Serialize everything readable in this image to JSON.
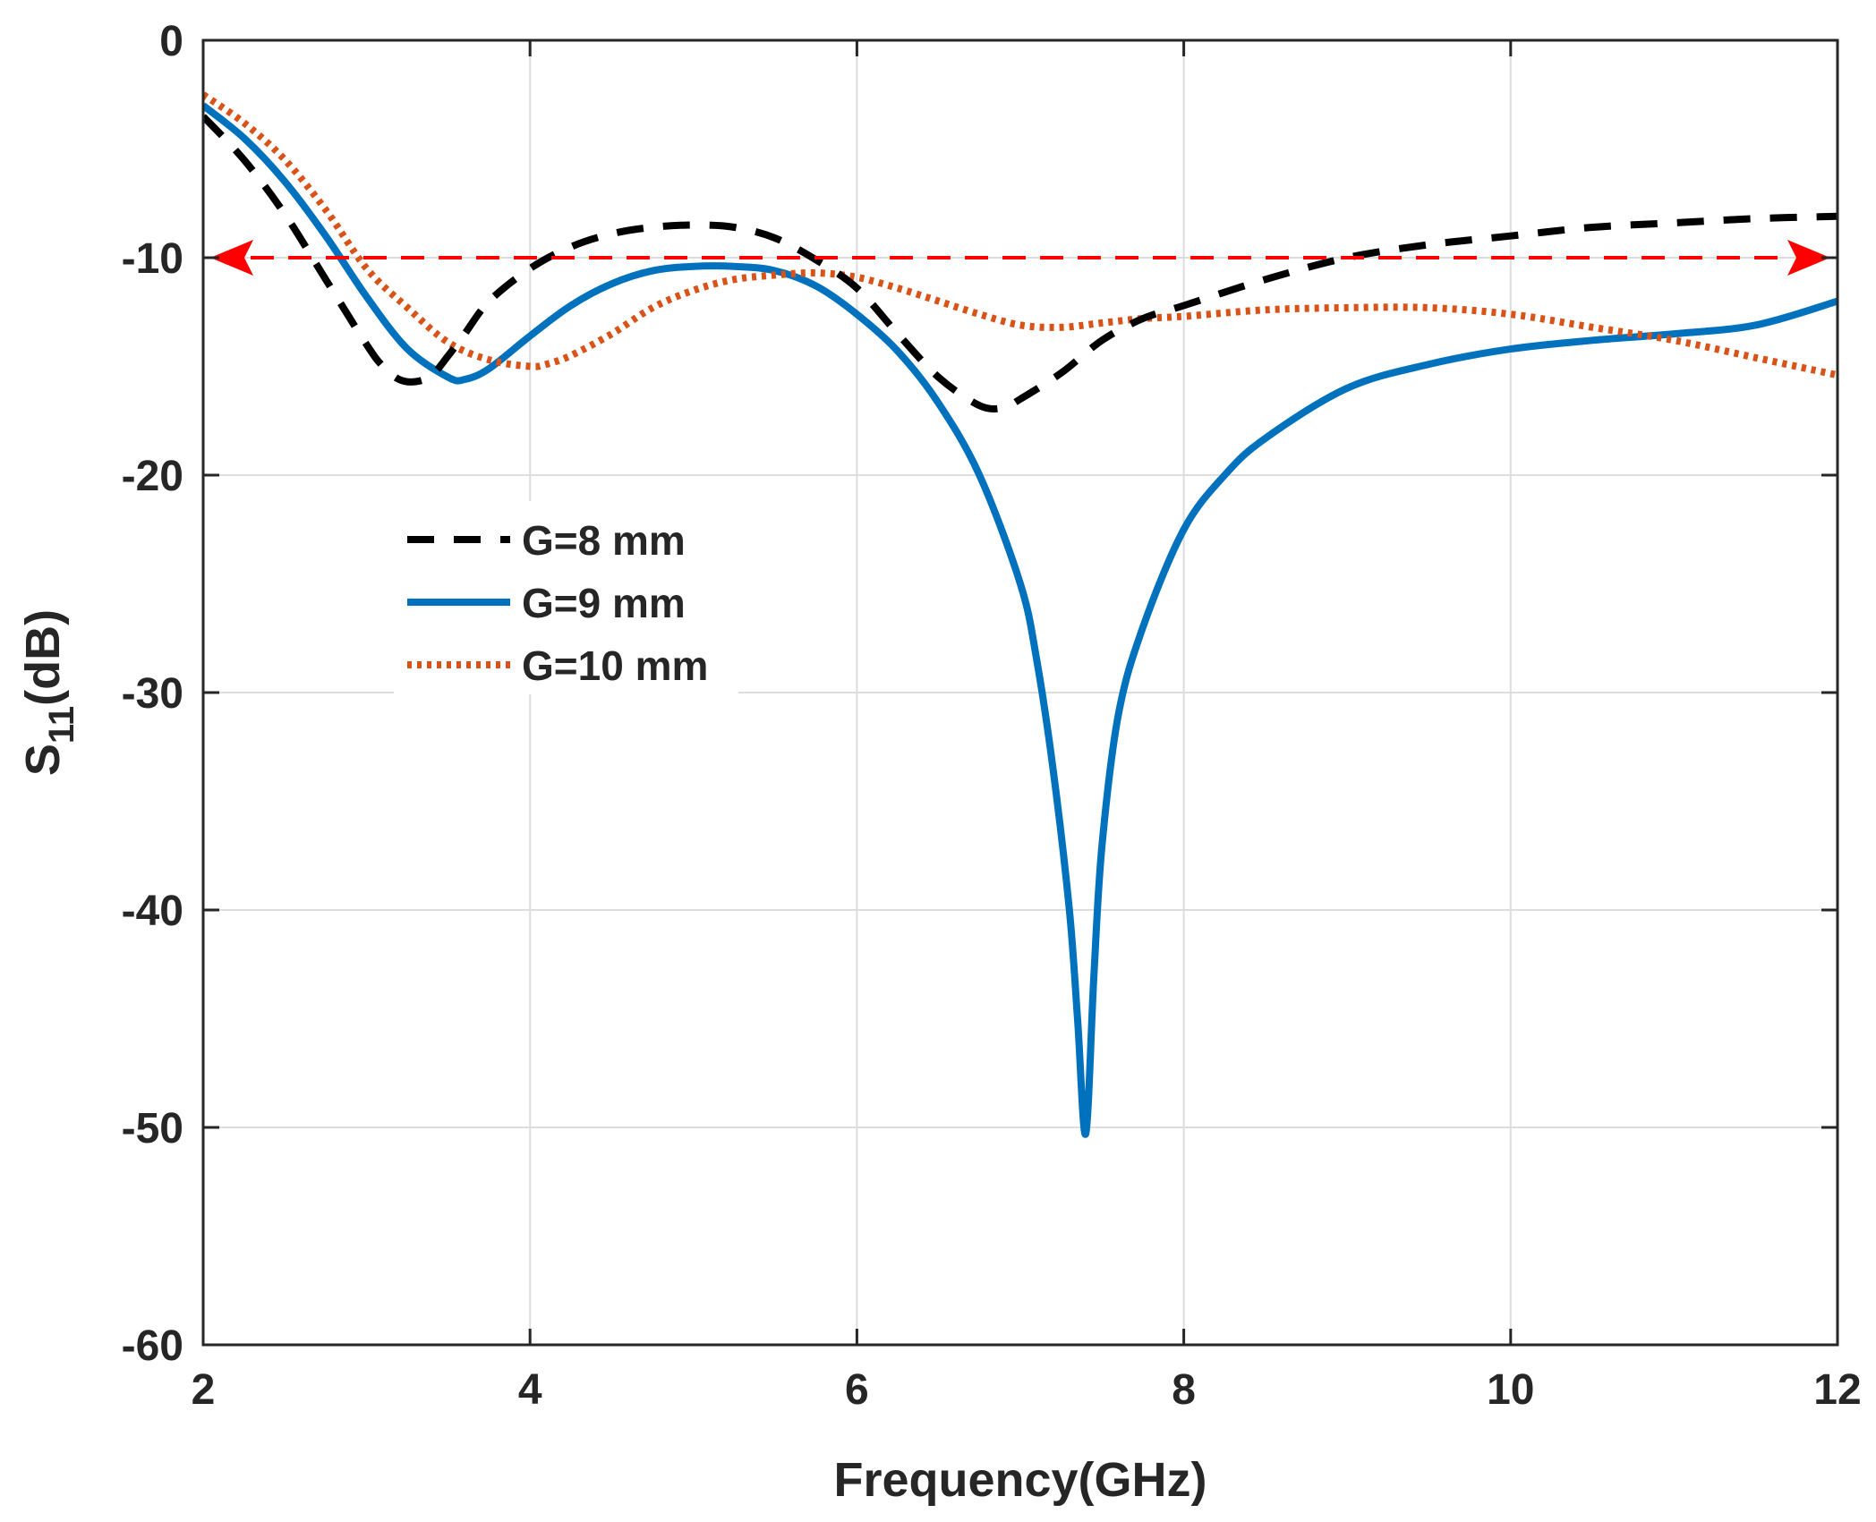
{
  "chart_data": {
    "type": "line",
    "title": "",
    "xlabel": "Frequency(GHz)",
    "ylabel_main": "S",
    "ylabel_sub": "11",
    "ylabel_tail": "(dB)",
    "xlim": [
      2,
      12
    ],
    "ylim": [
      -60,
      0
    ],
    "xticks": [
      2,
      4,
      6,
      8,
      10,
      12
    ],
    "yticks": [
      0,
      -10,
      -20,
      -30,
      -40,
      -50,
      -60
    ],
    "grid": true,
    "legend_placement": "center-left",
    "colors": {
      "g8": "#000000",
      "g9": "#0072BD",
      "g10": "#D95319",
      "reference": "#FF0000",
      "grid": "#DDDDDD",
      "axes": "#262626"
    },
    "reference_line": {
      "y": -10,
      "x_range": [
        2,
        12
      ],
      "style": "dashed double-headed arrow"
    },
    "series": [
      {
        "name": "G=8 mm",
        "style": "dashed",
        "x": [
          2.0,
          2.25,
          2.5,
          2.75,
          3.0,
          3.1,
          3.2,
          3.3,
          3.4,
          3.5,
          3.6,
          3.75,
          4.0,
          4.25,
          4.5,
          4.75,
          5.0,
          5.25,
          5.5,
          5.75,
          6.0,
          6.25,
          6.5,
          6.75,
          6.9,
          7.0,
          7.25,
          7.5,
          7.75,
          8.0,
          8.5,
          9.0,
          9.5,
          10.0,
          10.5,
          11.0,
          11.5,
          12.0
        ],
        "y": [
          -3.5,
          -5.5,
          -8.0,
          -11.0,
          -14.0,
          -15.0,
          -15.6,
          -15.7,
          -15.4,
          -14.5,
          -13.5,
          -12.0,
          -10.5,
          -9.5,
          -8.9,
          -8.6,
          -8.5,
          -8.6,
          -9.1,
          -10.1,
          -11.4,
          -13.5,
          -15.5,
          -16.8,
          -16.9,
          -16.5,
          -15.3,
          -13.8,
          -12.8,
          -12.2,
          -11.0,
          -10.0,
          -9.4,
          -9.0,
          -8.6,
          -8.4,
          -8.2,
          -8.1
        ]
      },
      {
        "name": "G=9 mm",
        "style": "solid",
        "x": [
          2.0,
          2.25,
          2.5,
          2.75,
          3.0,
          3.25,
          3.5,
          3.6,
          3.75,
          4.0,
          4.25,
          4.5,
          4.75,
          5.0,
          5.25,
          5.5,
          5.75,
          6.0,
          6.25,
          6.5,
          6.75,
          7.0,
          7.1,
          7.2,
          7.3,
          7.35,
          7.4,
          7.45,
          7.5,
          7.6,
          7.75,
          8.0,
          8.25,
          8.5,
          9.0,
          9.5,
          10.0,
          10.5,
          11.0,
          11.5,
          12.0
        ],
        "y": [
          -3.0,
          -4.5,
          -6.5,
          -9.0,
          -11.8,
          -14.2,
          -15.5,
          -15.6,
          -15.1,
          -13.6,
          -12.2,
          -11.2,
          -10.6,
          -10.4,
          -10.4,
          -10.6,
          -11.3,
          -12.6,
          -14.3,
          -16.7,
          -20.0,
          -25.0,
          -28.5,
          -33.5,
          -40.0,
          -45.0,
          -50.3,
          -43.0,
          -37.0,
          -31.0,
          -27.0,
          -22.5,
          -20.0,
          -18.3,
          -16.0,
          -14.9,
          -14.2,
          -13.8,
          -13.5,
          -13.1,
          -12.0
        ]
      },
      {
        "name": "G=10 mm",
        "style": "dotted",
        "x": [
          2.0,
          2.25,
          2.5,
          2.75,
          3.0,
          3.25,
          3.5,
          3.75,
          4.0,
          4.1,
          4.25,
          4.5,
          4.75,
          5.0,
          5.25,
          5.5,
          5.75,
          6.0,
          6.25,
          6.5,
          6.75,
          7.0,
          7.25,
          7.5,
          7.75,
          8.0,
          8.5,
          9.0,
          9.5,
          10.0,
          10.5,
          11.0,
          11.5,
          12.0
        ],
        "y": [
          -2.5,
          -3.8,
          -5.5,
          -7.8,
          -10.5,
          -12.3,
          -13.9,
          -14.7,
          -15.0,
          -14.9,
          -14.5,
          -13.5,
          -12.3,
          -11.5,
          -11.0,
          -10.8,
          -10.7,
          -10.9,
          -11.4,
          -12.0,
          -12.6,
          -13.1,
          -13.2,
          -13.0,
          -12.8,
          -12.7,
          -12.4,
          -12.3,
          -12.3,
          -12.6,
          -13.2,
          -13.8,
          -14.6,
          -15.4
        ]
      }
    ]
  }
}
